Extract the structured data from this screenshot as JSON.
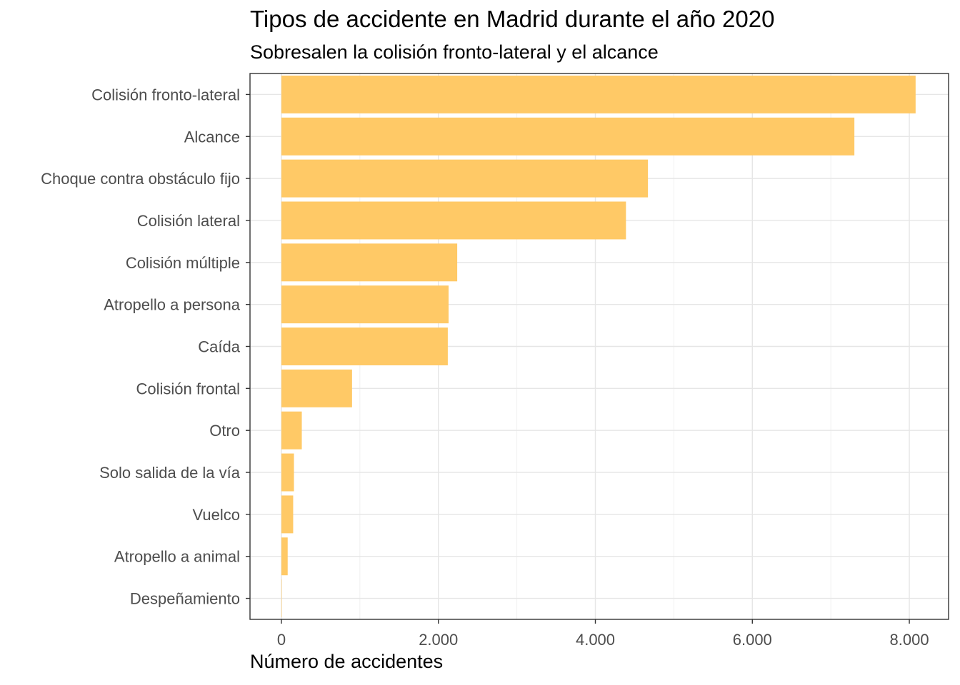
{
  "chart_data": {
    "type": "bar",
    "orientation": "horizontal",
    "title": "Tipos de accidente en Madrid durante el año 2020",
    "subtitle": "Sobresalen la colisión fronto-lateral y el alcance",
    "xlabel": "Número de accidentes",
    "ylabel": "",
    "categories": [
      "Colisión fronto-lateral",
      "Alcance",
      "Choque contra obstáculo fijo",
      "Colisión lateral",
      "Colisión múltiple",
      "Atropello a persona",
      "Caída",
      "Colisión frontal",
      "Otro",
      "Solo salida de la vía",
      "Vuelco",
      "Atropello a animal",
      "Despeñamiento"
    ],
    "values": [
      8080,
      7300,
      4670,
      4390,
      2240,
      2130,
      2120,
      900,
      260,
      160,
      150,
      80,
      5
    ],
    "xlim": [
      -400,
      8500
    ],
    "xticks": [
      0,
      2000,
      4000,
      6000,
      8000
    ],
    "xtick_labels": [
      "0",
      "2.000",
      "4.000",
      "6.000",
      "8.000"
    ],
    "bar_color": "#FFC966",
    "grid": true,
    "legend": "none"
  }
}
